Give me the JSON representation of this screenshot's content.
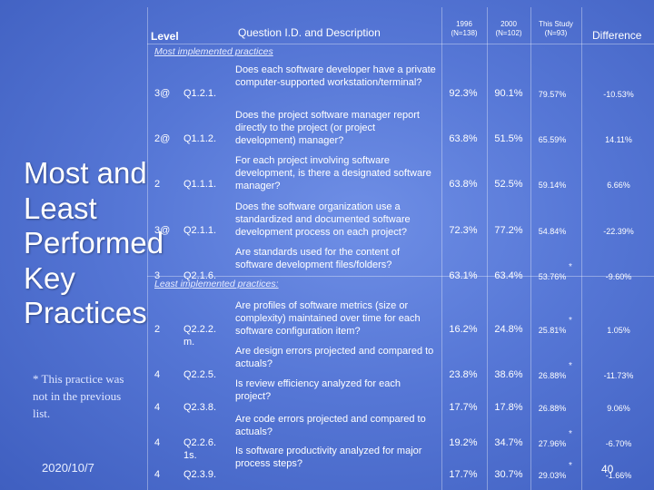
{
  "title": "Most and Least Performed Key Practices",
  "note": "* This practice was not in the previous list.",
  "date": "2020/10/7",
  "page_number": "40",
  "header": {
    "level": "Level",
    "question": "Question I.D. and Description",
    "col1996": "1996 (N=138)",
    "col2000": "2000 (N=102)",
    "colstudy": "This Study (N=93)",
    "difference": "Difference"
  },
  "sections": {
    "most": "Most implemented practices",
    "least": "Least implemented practices:"
  },
  "most_rows": [
    {
      "level": "3@",
      "id": "Q1.2.1.",
      "desc": "Does each software developer have a private computer-supported workstation/terminal?",
      "v1996": "92.3%",
      "v2000": "90.1%",
      "study": "79.57%",
      "star": "",
      "diff": "-10.53%"
    },
    {
      "level": "2@",
      "id": "Q1.1.2.",
      "desc": "Does the project software manager report directly to the project (or project development) manager?",
      "v1996": "63.8%",
      "v2000": "51.5%",
      "study": "65.59%",
      "star": "",
      "diff": "14.11%"
    },
    {
      "level": "2",
      "id": "Q1.1.1.",
      "desc": "For each project involving software development, is there a designated software manager?",
      "v1996": "63.8%",
      "v2000": "52.5%",
      "study": "59.14%",
      "star": "",
      "diff": "6.66%"
    },
    {
      "level": "3@",
      "id": "Q2.1.1.",
      "desc": "Does the software organization use a standardized and documented software development process on each project?",
      "v1996": "72.3%",
      "v2000": "77.2%",
      "study": "54.84%",
      "star": "",
      "diff": "-22.39%"
    },
    {
      "level": "3",
      "id": "Q2.1.6.",
      "desc": "Are standards used for the content of software development files/folders?",
      "v1996": "63.1%",
      "v2000": "63.4%",
      "study": "53.76%",
      "star": "*",
      "diff": "-9.60%"
    }
  ],
  "least_rows": [
    {
      "level": "2",
      "id": "Q2.2.2. m.",
      "desc": "Are profiles of software metrics (size or complexity) maintained over time for each software configuration item?",
      "v1996": "16.2%",
      "v2000": "24.8%",
      "study": "25.81%",
      "star": "*",
      "diff": "1.05%"
    },
    {
      "level": "4",
      "id": "Q2.2.5.",
      "desc": "Are design errors projected and compared to actuals?",
      "v1996": "23.8%",
      "v2000": "38.6%",
      "study": "26.88%",
      "star": "*",
      "diff": "-11.73%"
    },
    {
      "level": "4",
      "id": "Q2.3.8.",
      "desc": "Is review efficiency analyzed for each project?",
      "v1996": "17.7%",
      "v2000": "17.8%",
      "study": "26.88%",
      "star": "",
      "diff": "9.06%"
    },
    {
      "level": "4",
      "id": "Q2.2.6. 1s.",
      "desc": "Are code errors projected and compared to actuals?",
      "v1996": "19.2%",
      "v2000": "34.7%",
      "study": "27.96%",
      "star": "*",
      "diff": "-6.70%"
    },
    {
      "level": "4",
      "id": "Q2.3.9.",
      "desc": "Is software productivity analyzed for major process steps?",
      "v1996": "17.7%",
      "v2000": "30.7%",
      "study": "29.03%",
      "star": "*",
      "diff": "-1.66%"
    }
  ]
}
